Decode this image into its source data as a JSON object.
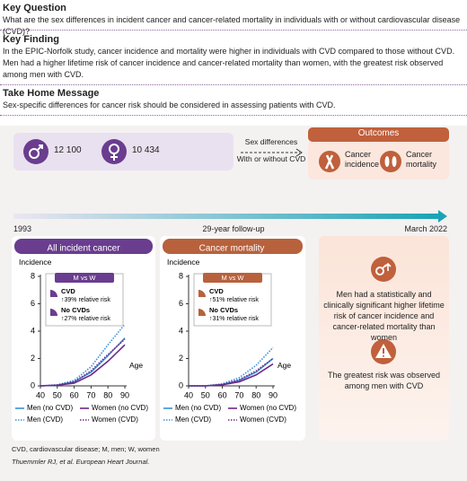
{
  "key_question": {
    "heading": "Key Question",
    "text": "What are the sex differences in incident cancer and cancer-related mortality in individuals with or without cardiovascular disease (CVD)?"
  },
  "key_finding": {
    "heading": "Key Finding",
    "text": "In the EPIC-Norfolk study, cancer incidence and mortality were higher in individuals with CVD compared to those without CVD. Men had a higher lifetime risk of cancer incidence and cancer-related mortality than women, with the greatest risk observed among men with CVD."
  },
  "take_home": {
    "heading": "Take Home Message",
    "text": "Sex-specific differences for cancer risk should be considered in assessing patients with CVD."
  },
  "cohort": {
    "men": "12 100",
    "women": "10 434",
    "arrow_top": "Sex differences",
    "arrow_bottom": "With or without CVD"
  },
  "outcomes": {
    "title": "Outcomes",
    "items": [
      "Cancer incidence",
      "Cancer mortality"
    ]
  },
  "timeline": {
    "start": "1993",
    "middle": "29-year follow-up",
    "end": "March 2022"
  },
  "chart_data": [
    {
      "type": "line",
      "title": "All incident cancer",
      "ylabel": "Incidence",
      "xlabel": "Age",
      "x": [
        40,
        50,
        60,
        70,
        80,
        90
      ],
      "xlim": [
        40,
        90
      ],
      "xticks": [
        40,
        50,
        60,
        70,
        80,
        90
      ],
      "ylim": [
        0,
        8
      ],
      "yticks": [
        0,
        2,
        4,
        6,
        8
      ],
      "inset": {
        "title": "M vs W",
        "items": [
          {
            "label": "CVD",
            "text": "↑39% relative risk"
          },
          {
            "label": "No CVDs",
            "text": "↑27% relative risk"
          }
        ]
      },
      "series": [
        {
          "name": "Men (no CVD)",
          "color": "#3b8fd6",
          "style": "solid",
          "values": [
            0,
            0.05,
            0.3,
            1.0,
            2.2,
            3.5
          ]
        },
        {
          "name": "Women (no CVD)",
          "color": "#6b2a8a",
          "style": "solid",
          "values": [
            0,
            0.05,
            0.2,
            0.8,
            1.8,
            3.0
          ]
        },
        {
          "name": "Men (CVD)",
          "color": "#3b8fd6",
          "style": "dotted",
          "values": [
            0,
            0.08,
            0.4,
            1.4,
            3.0,
            4.5
          ]
        },
        {
          "name": "Women (CVD)",
          "color": "#6b2a8a",
          "style": "dotted",
          "values": [
            0,
            0.06,
            0.3,
            1.1,
            2.3,
            3.4
          ]
        }
      ]
    },
    {
      "type": "line",
      "title": "Cancer mortality",
      "ylabel": "Incidence",
      "xlabel": "Age",
      "x": [
        40,
        50,
        60,
        70,
        80,
        90
      ],
      "xlim": [
        40,
        90
      ],
      "xticks": [
        40,
        50,
        60,
        70,
        80,
        90
      ],
      "ylim": [
        0,
        8
      ],
      "yticks": [
        0,
        2,
        4,
        6,
        8
      ],
      "inset": {
        "title": "M vs W",
        "items": [
          {
            "label": "CVD",
            "text": "↑51% relative risk"
          },
          {
            "label": "No CVDs",
            "text": "↑31% relative risk"
          }
        ]
      },
      "series": [
        {
          "name": "Men (no CVD)",
          "color": "#3b8fd6",
          "style": "solid",
          "values": [
            0,
            0,
            0.1,
            0.4,
            1.0,
            2.0
          ]
        },
        {
          "name": "Women (no CVD)",
          "color": "#6b2a8a",
          "style": "solid",
          "values": [
            0,
            0,
            0.08,
            0.3,
            0.8,
            1.6
          ]
        },
        {
          "name": "Men (CVD)",
          "color": "#3b8fd6",
          "style": "dotted",
          "values": [
            0,
            0,
            0.15,
            0.6,
            1.5,
            2.8
          ]
        },
        {
          "name": "Women (CVD)",
          "color": "#6b2a8a",
          "style": "dotted",
          "values": [
            0,
            0,
            0.1,
            0.45,
            1.1,
            2.0
          ]
        }
      ]
    }
  ],
  "findings": [
    "Men had a statistically and clinically significant higher lifetime risk of cancer incidence and cancer-related mortality than women",
    "The greatest risk was observed among men with CVD"
  ],
  "footnote": "CVD, cardiovascular disease; M, men; W, women",
  "citation": "Thuemmler RJ, et al. European Heart Journal."
}
